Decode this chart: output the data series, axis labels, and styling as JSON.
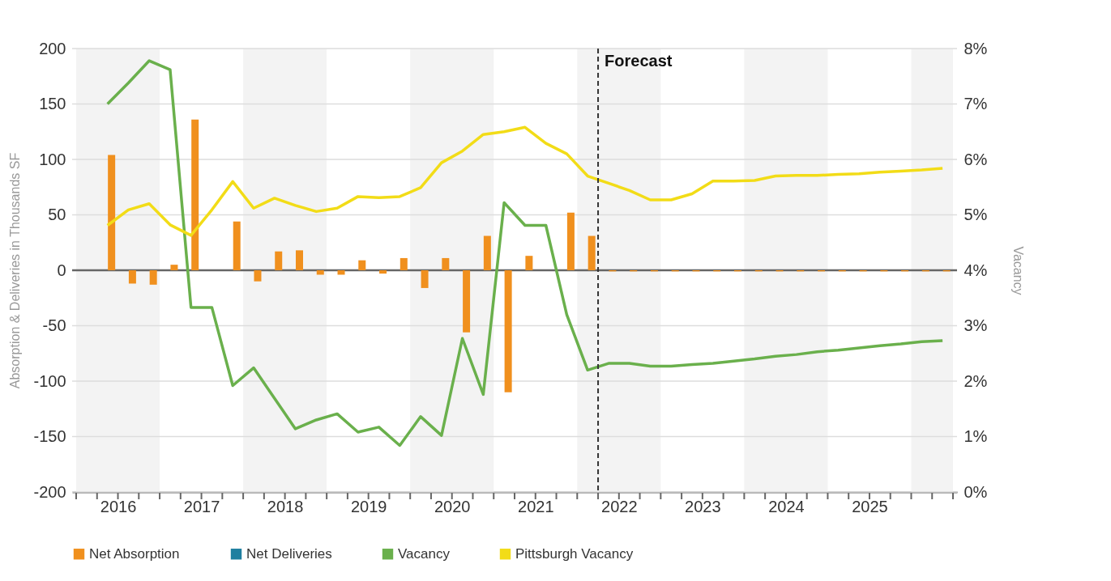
{
  "chart_data": {
    "type": "bar",
    "ylabel": "Absorption & Deliveries in Thousands SF",
    "y2label": "Vacancy",
    "x": [
      2016.375,
      2016.625,
      2016.875,
      2017.125,
      2017.375,
      2017.625,
      2017.875,
      2018.125,
      2018.375,
      2018.625,
      2018.875,
      2019.125,
      2019.375,
      2019.625,
      2019.875,
      2020.125,
      2020.375,
      2020.625,
      2020.875,
      2021.125,
      2021.375,
      2021.625,
      2021.875,
      2022.125,
      2022.375,
      2022.625,
      2022.875,
      2023.125,
      2023.375,
      2023.625,
      2023.875,
      2024.125,
      2024.375,
      2024.625,
      2024.875,
      2025.125,
      2025.375,
      2025.625,
      2025.875,
      2026.125,
      2026.375
    ],
    "series": [
      {
        "name": "Net Absorption",
        "color": "#f0901e",
        "values": [
          104,
          -12,
          -13,
          5,
          136,
          0,
          44,
          -10,
          17,
          18,
          -4,
          -4,
          9,
          -3,
          11,
          -16,
          11,
          -56,
          31,
          -110,
          13,
          0,
          52,
          31,
          -1,
          -1,
          -1,
          -1,
          -1,
          -1,
          -1,
          -1,
          -1,
          -1,
          -1,
          -1,
          -1,
          -1,
          -1,
          -1,
          -1
        ]
      },
      {
        "name": "Net Deliveries",
        "color": "#1f7fa0",
        "values": [
          0,
          0,
          0,
          0,
          0,
          0,
          0,
          0,
          0,
          0,
          0,
          0,
          0,
          0,
          0,
          0,
          0,
          0,
          0,
          0,
          0,
          0,
          0,
          0,
          0,
          0,
          0,
          0,
          0,
          0,
          0,
          0,
          0,
          0,
          0,
          0,
          0,
          0,
          0,
          0,
          0
        ]
      },
      {
        "name": "Vacancy",
        "type": "line",
        "axis": "y2",
        "color": "#6ab04c",
        "values": [
          7.0,
          7.38,
          7.78,
          7.62,
          3.33,
          3.33,
          1.92,
          2.24,
          1.69,
          1.14,
          1.3,
          1.41,
          1.08,
          1.17,
          0.84,
          1.36,
          1.02,
          2.77,
          1.76,
          5.22,
          4.81,
          4.81,
          3.2,
          2.2,
          2.32,
          2.32,
          2.27,
          2.27,
          2.3,
          2.32,
          2.36,
          2.4,
          2.45,
          2.48,
          2.53,
          2.56,
          2.6,
          2.64,
          2.67,
          2.71,
          2.73
        ]
      },
      {
        "name": "Pittsburgh Vacancy",
        "type": "line",
        "axis": "y2",
        "color": "#f2dc17",
        "values": [
          4.81,
          5.09,
          5.2,
          4.82,
          4.63,
          5.09,
          5.6,
          5.12,
          5.3,
          5.17,
          5.06,
          5.12,
          5.33,
          5.31,
          5.33,
          5.49,
          5.94,
          6.15,
          6.45,
          6.5,
          6.58,
          6.29,
          6.1,
          5.7,
          5.57,
          5.44,
          5.27,
          5.27,
          5.38,
          5.61,
          5.61,
          5.62,
          5.7,
          5.71,
          5.71,
          5.73,
          5.74,
          5.77,
          5.79,
          5.81,
          5.84
        ]
      }
    ],
    "xlim": [
      2016,
      2026.5
    ],
    "xticks": [
      {
        "value": 2016,
        "label": null
      },
      {
        "value": 2016.25,
        "label": null
      },
      {
        "value": 2016.5,
        "label": "2016"
      },
      {
        "value": 2016.75,
        "label": null
      },
      {
        "value": 2017,
        "label": null
      },
      {
        "value": 2017.25,
        "label": null
      },
      {
        "value": 2017.5,
        "label": "2017"
      },
      {
        "value": 2017.75,
        "label": null
      },
      {
        "value": 2018,
        "label": null
      },
      {
        "value": 2018.25,
        "label": null
      },
      {
        "value": 2018.5,
        "label": "2018"
      },
      {
        "value": 2018.75,
        "label": null
      },
      {
        "value": 2019,
        "label": null
      },
      {
        "value": 2019.25,
        "label": null
      },
      {
        "value": 2019.5,
        "label": "2019"
      },
      {
        "value": 2019.75,
        "label": null
      },
      {
        "value": 2020,
        "label": null
      },
      {
        "value": 2020.25,
        "label": null
      },
      {
        "value": 2020.5,
        "label": "2020"
      },
      {
        "value": 2020.75,
        "label": null
      },
      {
        "value": 2021,
        "label": null
      },
      {
        "value": 2021.25,
        "label": null
      },
      {
        "value": 2021.5,
        "label": "2021"
      },
      {
        "value": 2021.75,
        "label": null
      },
      {
        "value": 2022,
        "label": null
      },
      {
        "value": 2022.25,
        "label": null
      },
      {
        "value": 2022.5,
        "label": "2022"
      },
      {
        "value": 2022.75,
        "label": null
      },
      {
        "value": 2023,
        "label": null
      },
      {
        "value": 2023.25,
        "label": null
      },
      {
        "value": 2023.5,
        "label": "2023"
      },
      {
        "value": 2023.75,
        "label": null
      },
      {
        "value": 2024,
        "label": null
      },
      {
        "value": 2024.25,
        "label": null
      },
      {
        "value": 2024.5,
        "label": "2024"
      },
      {
        "value": 2024.75,
        "label": null
      },
      {
        "value": 2025,
        "label": null
      },
      {
        "value": 2025.25,
        "label": null
      },
      {
        "value": 2025.5,
        "label": "2025"
      },
      {
        "value": 2025.75,
        "label": null
      },
      {
        "value": 2026,
        "label": null
      },
      {
        "value": 2026.25,
        "label": null
      },
      {
        "value": 2026.5,
        "label": null
      }
    ],
    "ylim": [
      -200,
      200
    ],
    "yticks": [
      -200,
      -150,
      -100,
      -50,
      0,
      50,
      100,
      150,
      200
    ],
    "y2lim": [
      0,
      8
    ],
    "y2ticks": [
      {
        "value": 0,
        "label": "0%"
      },
      {
        "value": 1,
        "label": "1%"
      },
      {
        "value": 2,
        "label": "2%"
      },
      {
        "value": 3,
        "label": "3%"
      },
      {
        "value": 4,
        "label": "4%"
      },
      {
        "value": 5,
        "label": "5%"
      },
      {
        "value": 6,
        "label": "6%"
      },
      {
        "value": 7,
        "label": "7%"
      },
      {
        "value": 8,
        "label": "8%"
      }
    ],
    "ref_lines": [
      {
        "axis": "x",
        "value": 2022.25,
        "label": "Forecast",
        "color": "#333333",
        "line_style": "dashed"
      }
    ],
    "bands": [
      {
        "axis": "x",
        "from": 2016,
        "to": 2017,
        "color": "#f3f3f3"
      },
      {
        "axis": "x",
        "from": 2018,
        "to": 2019,
        "color": "#f3f3f3"
      },
      {
        "axis": "x",
        "from": 2020,
        "to": 2021,
        "color": "#f3f3f3"
      },
      {
        "axis": "x",
        "from": 2022,
        "to": 2023,
        "color": "#f3f3f3"
      },
      {
        "axis": "x",
        "from": 2024,
        "to": 2025,
        "color": "#f3f3f3"
      },
      {
        "axis": "x",
        "from": 2026,
        "to": 2026.5,
        "color": "#f3f3f3"
      }
    ],
    "grid": "y",
    "legend": "bottom",
    "marker": "none",
    "line_style": "solid"
  }
}
